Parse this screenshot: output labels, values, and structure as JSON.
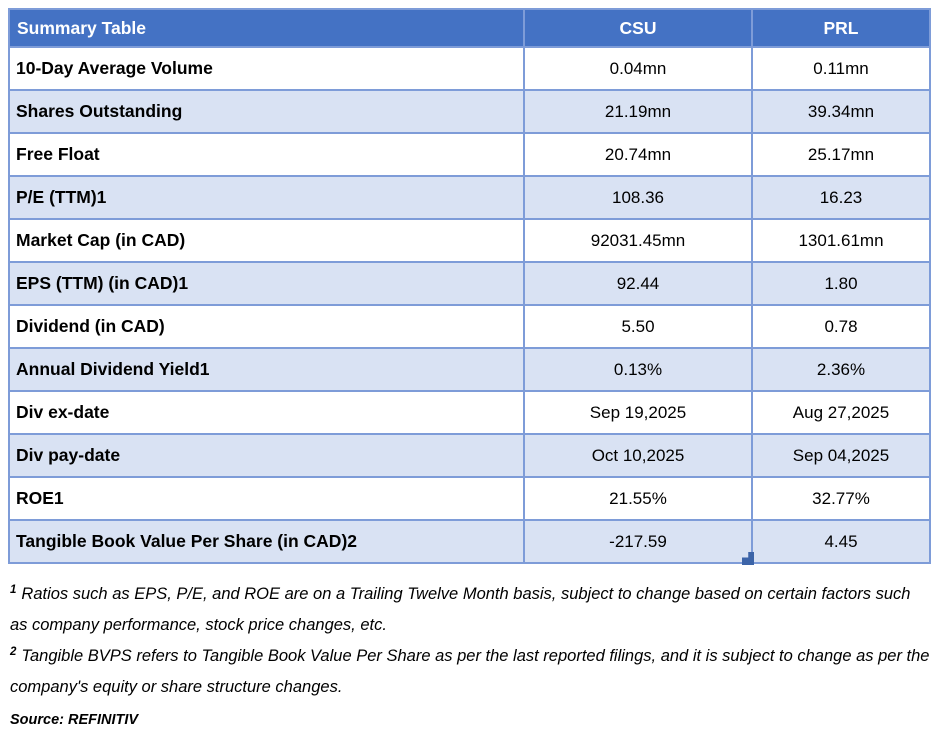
{
  "table": {
    "title": "Summary Table",
    "columns": [
      "CSU",
      "PRL"
    ],
    "rows": [
      {
        "label": "10-Day Average Volume",
        "csu": "0.04mn",
        "prl": "0.11mn"
      },
      {
        "label": "Shares Outstanding",
        "csu": "21.19mn",
        "prl": "39.34mn"
      },
      {
        "label": "Free Float",
        "csu": "20.74mn",
        "prl": "25.17mn"
      },
      {
        "label": "P/E (TTM)1",
        "csu": "108.36",
        "prl": "16.23"
      },
      {
        "label": "Market Cap (in CAD)",
        "csu": "92031.45mn",
        "prl": "1301.61mn"
      },
      {
        "label": "EPS (TTM) (in CAD)1",
        "csu": "92.44",
        "prl": "1.80"
      },
      {
        "label": "Dividend (in CAD)",
        "csu": "5.50",
        "prl": "0.78"
      },
      {
        "label": "Annual Dividend Yield1",
        "csu": "0.13%",
        "prl": "2.36%"
      },
      {
        "label": "Div ex-date",
        "csu": "Sep 19,2025",
        "prl": "Aug 27,2025"
      },
      {
        "label": "Div pay-date",
        "csu": "Oct 10,2025",
        "prl": "Sep 04,2025"
      },
      {
        "label": "ROE1",
        "csu": "21.55%",
        "prl": "32.77%"
      },
      {
        "label": "Tangible Book Value Per Share (in CAD)2",
        "csu": "-217.59",
        "prl": "4.45"
      }
    ]
  },
  "footnotes": [
    {
      "sup": "1",
      "text": "Ratios such as EPS, P/E, and ROE are on a Trailing Twelve Month basis, subject to change based on certain factors such as company performance, stock price changes, etc."
    },
    {
      "sup": "2",
      "text": "Tangible BVPS refers to Tangible Book Value Per Share as per the last reported filings, and it is subject to change as per the company's equity or share structure changes."
    }
  ],
  "source": "Source: REFINITIV",
  "colors": {
    "header_bg": "#4472C4",
    "header_text": "#FFFFFF",
    "row_shade": "#D9E2F3",
    "border": "#7E9CD8",
    "handle": "#3C64A8"
  }
}
